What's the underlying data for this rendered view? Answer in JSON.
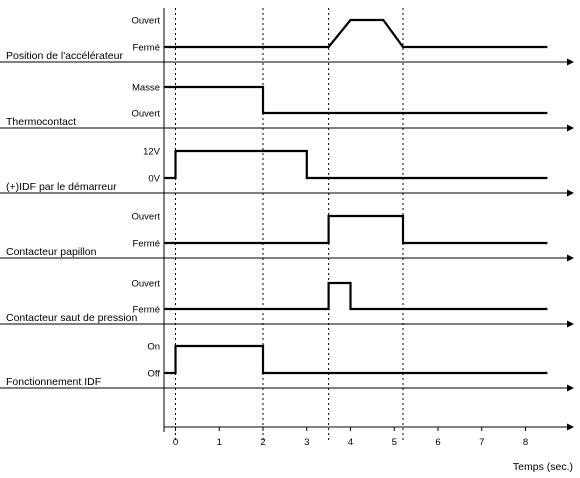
{
  "x_axis": {
    "title": "Temps (sec.)",
    "ticks": [
      "0",
      "1",
      "2",
      "3",
      "4",
      "5",
      "6",
      "7",
      "8"
    ]
  },
  "event_times": [
    0,
    2,
    3.5,
    5.2
  ],
  "signals": [
    {
      "name": "Position de l'accélérateur",
      "levels": [
        "Ouvert",
        "Fermé"
      ],
      "waveform": [
        [
          -0.25,
          0
        ],
        [
          3.5,
          0
        ],
        [
          4.0,
          1
        ],
        [
          4.75,
          1
        ],
        [
          5.2,
          0
        ],
        [
          8.5,
          0
        ]
      ]
    },
    {
      "name": "Thermocontact",
      "levels": [
        "Masse",
        "Ouvert"
      ],
      "waveform": [
        [
          -0.25,
          1
        ],
        [
          2.0,
          1
        ],
        [
          2.0,
          0
        ],
        [
          8.5,
          0
        ]
      ]
    },
    {
      "name": "(+)IDF par le démarreur",
      "levels": [
        "12V",
        "0V"
      ],
      "waveform": [
        [
          -0.25,
          0
        ],
        [
          0.0,
          0
        ],
        [
          0.0,
          1
        ],
        [
          3.0,
          1
        ],
        [
          3.0,
          0
        ],
        [
          8.5,
          0
        ]
      ]
    },
    {
      "name": "Contacteur papillon",
      "levels": [
        "Ouvert",
        "Fermé"
      ],
      "waveform": [
        [
          -0.25,
          0
        ],
        [
          3.5,
          0
        ],
        [
          3.5,
          1
        ],
        [
          5.2,
          1
        ],
        [
          5.2,
          0
        ],
        [
          8.5,
          0
        ]
      ]
    },
    {
      "name": "Contacteur saut de pression",
      "levels": [
        "Ouvert",
        "Fermé"
      ],
      "waveform": [
        [
          -0.25,
          0
        ],
        [
          3.5,
          0
        ],
        [
          3.5,
          1
        ],
        [
          4.0,
          1
        ],
        [
          4.0,
          0
        ],
        [
          8.5,
          0
        ]
      ]
    },
    {
      "name": "Fonctionnement IDF",
      "levels": [
        "On",
        "Off"
      ],
      "waveform": [
        [
          -0.25,
          0
        ],
        [
          0.0,
          0
        ],
        [
          0.0,
          1
        ],
        [
          2.0,
          1
        ],
        [
          2.0,
          0
        ],
        [
          8.5,
          0
        ]
      ]
    }
  ]
}
